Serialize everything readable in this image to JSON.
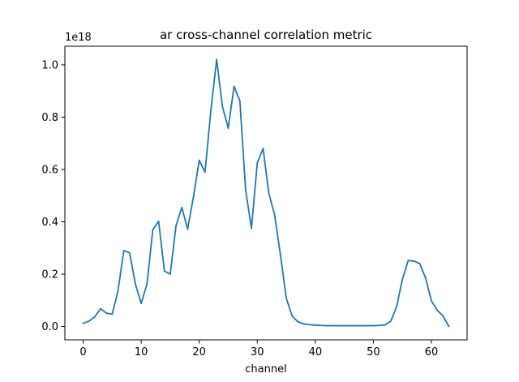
{
  "chart_data": {
    "type": "line",
    "title": "ar cross-channel correlation metric",
    "xlabel": "channel",
    "ylabel": "",
    "y_offset_label": "1e18",
    "y_scale_factor": 1e+18,
    "xlim": [
      -3.15,
      66.15
    ],
    "ylim": [
      -0.051,
      1.071
    ],
    "xticks": [
      0,
      10,
      20,
      30,
      40,
      50,
      60
    ],
    "xtick_labels": [
      "0",
      "10",
      "20",
      "30",
      "40",
      "50",
      "60"
    ],
    "yticks": [
      0.0,
      0.2,
      0.4,
      0.6,
      0.8,
      1.0
    ],
    "ytick_labels": [
      "0.0",
      "0.2",
      "0.4",
      "0.6",
      "0.8",
      "1.0"
    ],
    "grid": false,
    "line_color": "#1f77b4",
    "series": [
      {
        "x": [
          0,
          1,
          2,
          3,
          4,
          5,
          6,
          7,
          8,
          9,
          10,
          11,
          12,
          13,
          14,
          15,
          16,
          17,
          18,
          19,
          20,
          21,
          22,
          23,
          24,
          25,
          26,
          27,
          28,
          29,
          30,
          31,
          32,
          33,
          34,
          35,
          36,
          37,
          38,
          39,
          40,
          41,
          42,
          43,
          44,
          45,
          46,
          47,
          48,
          49,
          50,
          51,
          52,
          53,
          54,
          55,
          56,
          57,
          58,
          59,
          60,
          61,
          62,
          63
        ],
        "y": [
          0.012,
          0.02,
          0.037,
          0.068,
          0.051,
          0.047,
          0.136,
          0.29,
          0.282,
          0.162,
          0.088,
          0.162,
          0.37,
          0.402,
          0.212,
          0.2,
          0.385,
          0.455,
          0.372,
          0.495,
          0.635,
          0.59,
          0.825,
          1.02,
          0.84,
          0.758,
          0.918,
          0.862,
          0.52,
          0.375,
          0.625,
          0.68,
          0.508,
          0.425,
          0.272,
          0.108,
          0.04,
          0.018,
          0.01,
          0.007,
          0.005,
          0.004,
          0.003,
          0.003,
          0.003,
          0.003,
          0.003,
          0.003,
          0.003,
          0.003,
          0.003,
          0.004,
          0.006,
          0.02,
          0.075,
          0.18,
          0.252,
          0.25,
          0.24,
          0.185,
          0.098,
          0.062,
          0.04,
          0.001
        ]
      }
    ]
  }
}
